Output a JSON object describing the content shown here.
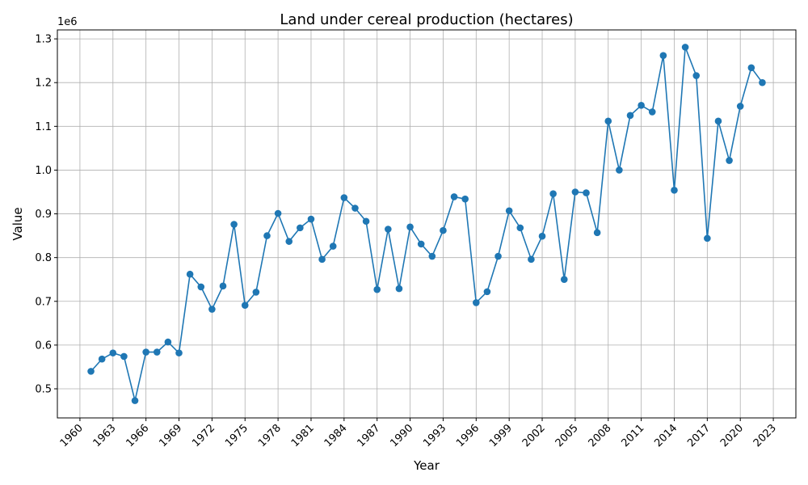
{
  "chart_data": {
    "type": "line",
    "title": "Land under cereal production (hectares)",
    "xlabel": "Year",
    "ylabel": "Value",
    "y_offset_label": "1e6",
    "x_ticks": [
      1960,
      1963,
      1966,
      1969,
      1972,
      1975,
      1978,
      1981,
      1984,
      1987,
      1990,
      1993,
      1996,
      1999,
      2002,
      2005,
      2008,
      2011,
      2014,
      2017,
      2020,
      2023
    ],
    "y_ticks": [
      0.5,
      0.6,
      0.7,
      0.8,
      0.9,
      1.0,
      1.1,
      1.2,
      1.3
    ],
    "y_tick_labels": [
      "0.5",
      "0.6",
      "0.7",
      "0.8",
      "0.9",
      "1.0",
      "1.1",
      "1.2",
      "1.3"
    ],
    "xlim": [
      1957.95,
      2025.05
    ],
    "ylim": [
      0.4335,
      1.3205
    ],
    "grid": true,
    "series_color": "#1f77b4",
    "series": [
      {
        "x": [
          1961,
          1962,
          1963,
          1964,
          1965,
          1966,
          1967,
          1968,
          1969,
          1970,
          1971,
          1972,
          1973,
          1974,
          1975,
          1976,
          1977,
          1978,
          1979,
          1980,
          1981,
          1982,
          1983,
          1984,
          1985,
          1986,
          1987,
          1988,
          1989,
          1990,
          1991,
          1992,
          1993,
          1994,
          1995,
          1996,
          1997,
          1998,
          1999,
          2000,
          2001,
          2002,
          2003,
          2004,
          2005,
          2006,
          2007,
          2008,
          2009,
          2010,
          2011,
          2012,
          2013,
          2014,
          2015,
          2016,
          2017,
          2018,
          2019,
          2020,
          2021,
          2022
        ],
        "values": [
          0.54,
          0.568,
          0.582,
          0.574,
          0.473,
          0.584,
          0.584,
          0.607,
          0.582,
          0.762,
          0.733,
          0.682,
          0.735,
          0.876,
          0.691,
          0.721,
          0.85,
          0.901,
          0.837,
          0.868,
          0.888,
          0.796,
          0.826,
          0.937,
          0.913,
          0.883,
          0.727,
          0.865,
          0.729,
          0.87,
          0.831,
          0.803,
          0.862,
          0.939,
          0.934,
          0.697,
          0.722,
          0.803,
          0.907,
          0.868,
          0.796,
          0.849,
          0.946,
          0.75,
          0.95,
          0.948,
          0.857,
          1.112,
          1.0,
          1.125,
          1.148,
          1.133,
          1.262,
          0.954,
          1.281,
          1.216,
          0.844,
          1.112,
          1.022,
          1.146,
          1.234,
          1.2
        ]
      }
    ]
  }
}
